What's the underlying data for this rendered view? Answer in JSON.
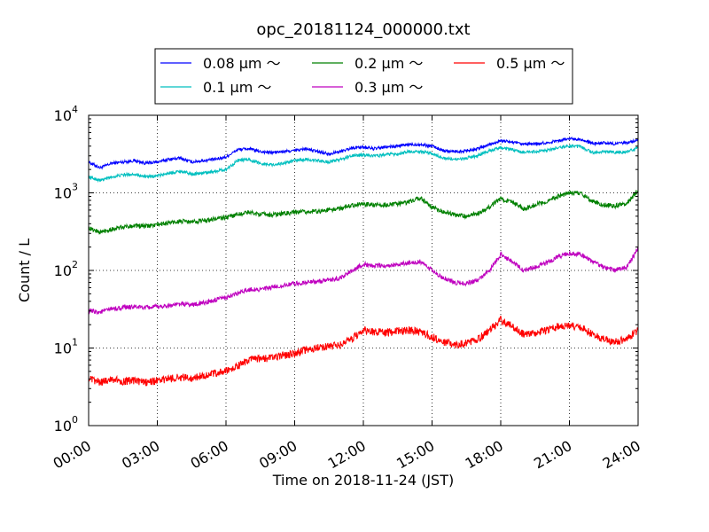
{
  "chart_data": {
    "type": "line",
    "title": "opc_20181124_000000.txt",
    "xlabel": "Time on 2018-11-24 (JST)",
    "ylabel": "Count / L",
    "x_unit": "hours",
    "xlim": [
      0,
      24
    ],
    "ylim": [
      1,
      10000
    ],
    "yscale": "log",
    "grid": true,
    "legend_position": "top-center",
    "x_tick_labels": [
      "00:00",
      "03:00",
      "06:00",
      "09:00",
      "12:00",
      "15:00",
      "18:00",
      "21:00",
      "24:00"
    ],
    "y_tick_labels": [
      {
        "base": "10",
        "exp": "0"
      },
      {
        "base": "10",
        "exp": "1"
      },
      {
        "base": "10",
        "exp": "2"
      },
      {
        "base": "10",
        "exp": "3"
      },
      {
        "base": "10",
        "exp": "4"
      }
    ],
    "series": [
      {
        "name": "0.08 μm ～",
        "color": "#0000ff",
        "x": [
          0,
          0.5,
          1,
          1.5,
          2,
          2.5,
          3,
          3.5,
          4,
          4.5,
          5,
          5.5,
          6,
          6.5,
          7,
          7.5,
          8,
          8.5,
          9,
          9.5,
          10,
          10.5,
          11,
          11.5,
          12,
          12.5,
          13,
          13.5,
          14,
          14.5,
          15,
          15.5,
          16,
          16.5,
          17,
          17.5,
          18,
          18.5,
          19,
          19.5,
          20,
          20.5,
          21,
          21.5,
          22,
          22.5,
          23,
          23.5,
          24
        ],
        "values": [
          2500,
          2100,
          2400,
          2500,
          2600,
          2400,
          2500,
          2700,
          2800,
          2500,
          2600,
          2700,
          2900,
          3600,
          3700,
          3400,
          3300,
          3400,
          3500,
          3700,
          3400,
          3200,
          3400,
          3800,
          3900,
          3700,
          3900,
          4000,
          4200,
          4200,
          4000,
          3500,
          3400,
          3500,
          3700,
          4200,
          4700,
          4500,
          4200,
          4300,
          4400,
          4700,
          5000,
          4900,
          4300,
          4400,
          4300,
          4400,
          4800
        ]
      },
      {
        "name": "0.1 μm ～",
        "color": "#00bfbf",
        "x": [
          0,
          0.5,
          1,
          1.5,
          2,
          2.5,
          3,
          3.5,
          4,
          4.5,
          5,
          5.5,
          6,
          6.5,
          7,
          7.5,
          8,
          8.5,
          9,
          9.5,
          10,
          10.5,
          11,
          11.5,
          12,
          12.5,
          13,
          13.5,
          14,
          14.5,
          15,
          15.5,
          16,
          16.5,
          17,
          17.5,
          18,
          18.5,
          19,
          19.5,
          20,
          20.5,
          21,
          21.5,
          22,
          22.5,
          23,
          23.5,
          24
        ],
        "values": [
          1600,
          1450,
          1600,
          1700,
          1750,
          1600,
          1650,
          1800,
          1900,
          1750,
          1800,
          1900,
          2000,
          2600,
          2700,
          2400,
          2300,
          2400,
          2600,
          2700,
          2600,
          2500,
          2700,
          3000,
          3100,
          3000,
          3100,
          3200,
          3400,
          3400,
          3200,
          2800,
          2700,
          2800,
          3000,
          3500,
          3800,
          3600,
          3300,
          3400,
          3500,
          3800,
          4000,
          3900,
          3300,
          3400,
          3300,
          3400,
          3800
        ]
      },
      {
        "name": "0.2 μm ～",
        "color": "#008000",
        "x": [
          0,
          0.5,
          1,
          1.5,
          2,
          2.5,
          3,
          3.5,
          4,
          4.5,
          5,
          5.5,
          6,
          6.5,
          7,
          7.5,
          8,
          8.5,
          9,
          9.5,
          10,
          10.5,
          11,
          11.5,
          12,
          12.5,
          13,
          13.5,
          14,
          14.5,
          15,
          15.5,
          16,
          16.5,
          17,
          17.5,
          18,
          18.5,
          19,
          19.5,
          20,
          20.5,
          21,
          21.5,
          22,
          22.5,
          23,
          23.5,
          24
        ],
        "values": [
          350,
          310,
          340,
          360,
          380,
          370,
          390,
          410,
          430,
          420,
          440,
          460,
          480,
          530,
          560,
          530,
          520,
          540,
          560,
          570,
          580,
          600,
          630,
          700,
          720,
          700,
          700,
          720,
          760,
          870,
          650,
          570,
          520,
          500,
          550,
          650,
          850,
          750,
          620,
          700,
          780,
          900,
          1000,
          980,
          780,
          700,
          680,
          720,
          1100
        ]
      },
      {
        "name": "0.3 μm ～",
        "color": "#bf00bf",
        "x": [
          0,
          0.5,
          1,
          1.5,
          2,
          2.5,
          3,
          3.5,
          4,
          4.5,
          5,
          5.5,
          6,
          6.5,
          7,
          7.5,
          8,
          8.5,
          9,
          9.5,
          10,
          10.5,
          11,
          11.5,
          12,
          12.5,
          13,
          13.5,
          14,
          14.5,
          15,
          15.5,
          16,
          16.5,
          17,
          17.5,
          18,
          18.5,
          19,
          19.5,
          20,
          20.5,
          21,
          21.5,
          22,
          22.5,
          23,
          23.5,
          24
        ],
        "values": [
          30,
          29,
          32,
          33,
          34,
          33,
          34,
          35,
          37,
          36,
          38,
          41,
          45,
          50,
          57,
          57,
          60,
          64,
          68,
          70,
          72,
          75,
          80,
          100,
          120,
          115,
          115,
          120,
          125,
          130,
          100,
          80,
          70,
          68,
          75,
          100,
          160,
          130,
          100,
          110,
          125,
          150,
          165,
          160,
          130,
          110,
          100,
          110,
          190
        ]
      },
      {
        "name": "0.5 μm ～",
        "color": "#ff0000",
        "x": [
          0,
          0.5,
          1,
          1.5,
          2,
          2.5,
          3,
          3.5,
          4,
          4.5,
          5,
          5.5,
          6,
          6.5,
          7,
          7.5,
          8,
          8.5,
          9,
          9.5,
          10,
          10.5,
          11,
          11.5,
          12,
          12.5,
          13,
          13.5,
          14,
          14.5,
          15,
          15.5,
          16,
          16.5,
          17,
          17.5,
          18,
          18.5,
          19,
          19.5,
          20,
          20.5,
          21,
          21.5,
          22,
          22.5,
          23,
          23.5,
          24
        ],
        "values": [
          4,
          3.6,
          4,
          3.7,
          3.8,
          3.6,
          3.8,
          4,
          4.2,
          4.1,
          4.4,
          4.7,
          5,
          5.8,
          7,
          7.2,
          7.5,
          8,
          8.5,
          9.5,
          10,
          10.5,
          11,
          13,
          17,
          16,
          16,
          16.5,
          17,
          16,
          14,
          12,
          11,
          11.5,
          13,
          17,
          23,
          19,
          15,
          15.5,
          17,
          19,
          19.5,
          18.5,
          15,
          13,
          12,
          13,
          17
        ]
      }
    ]
  }
}
